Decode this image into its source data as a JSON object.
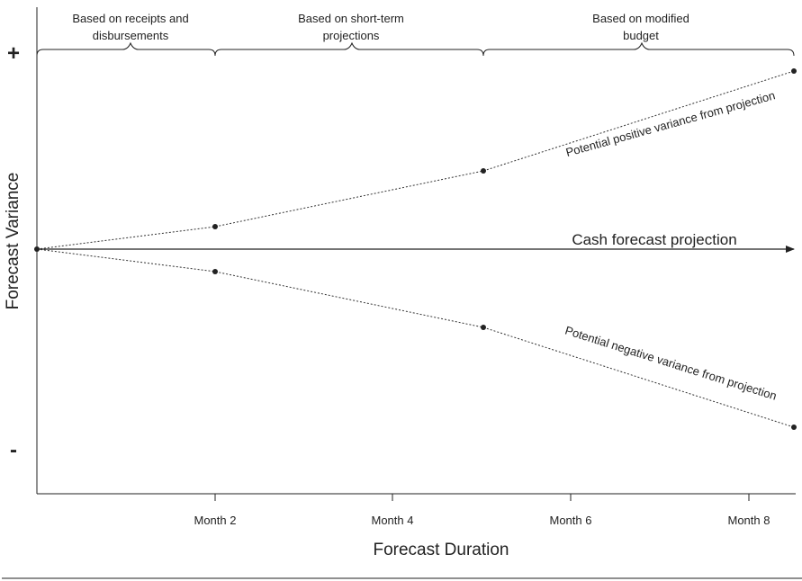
{
  "phases": [
    {
      "line1": "Based on receipts and",
      "line2": "disbursements"
    },
    {
      "line1": "Based on short-term",
      "line2": "projections"
    },
    {
      "line1": "Based on modified",
      "line2": "budget"
    }
  ],
  "y_axis": {
    "title": "Forecast Variance",
    "plus": "+",
    "minus": "-"
  },
  "x_axis": {
    "title": "Forecast Duration",
    "ticks": [
      "Month 2",
      "Month 4",
      "Month 6",
      "Month 8"
    ]
  },
  "projection_label": "Cash forecast projection",
  "positive_label": "Potential positive variance from projection",
  "negative_label": "Potential negative variance from projection"
}
